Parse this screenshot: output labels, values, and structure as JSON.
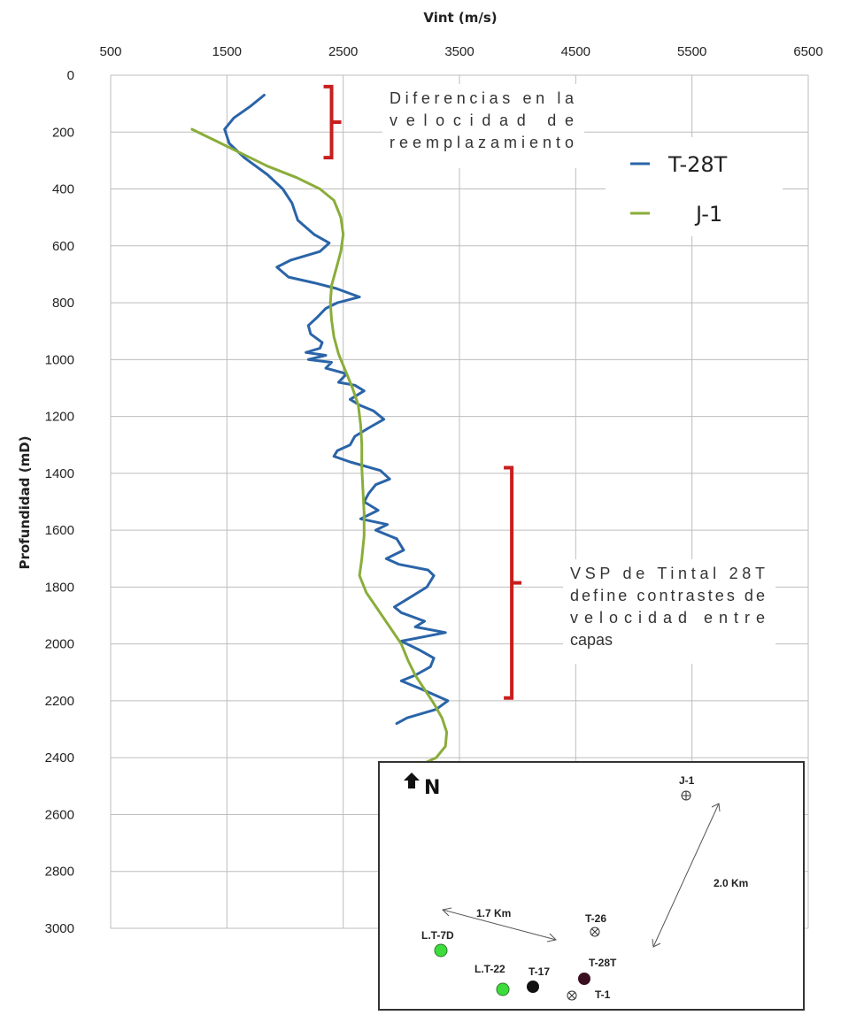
{
  "chart_data": {
    "type": "line",
    "xlabel": "Vint (m/s)",
    "ylabel": "Profundidad (mD)",
    "xlim": [
      500,
      6500
    ],
    "ylim": [
      0,
      3000
    ],
    "x_ticks": [
      "500",
      "1500",
      "2500",
      "3500",
      "4500",
      "5500",
      "6500"
    ],
    "y_ticks": [
      "0",
      "200",
      "400",
      "600",
      "800",
      "1000",
      "1200",
      "1400",
      "1600",
      "1800",
      "2000",
      "2200",
      "2400",
      "2600",
      "2800",
      "3000"
    ],
    "grid": true,
    "legend_position": "top-right",
    "series": [
      {
        "name": "T-28T",
        "color": "#2a64a8",
        "points": [
          [
            1820,
            70
          ],
          [
            1700,
            110
          ],
          [
            1560,
            150
          ],
          [
            1480,
            190
          ],
          [
            1520,
            240
          ],
          [
            1650,
            290
          ],
          [
            1850,
            350
          ],
          [
            1980,
            400
          ],
          [
            2060,
            450
          ],
          [
            2110,
            510
          ],
          [
            2250,
            560
          ],
          [
            2380,
            590
          ],
          [
            2300,
            620
          ],
          [
            2050,
            650
          ],
          [
            1930,
            675
          ],
          [
            2030,
            710
          ],
          [
            2250,
            730
          ],
          [
            2440,
            750
          ],
          [
            2640,
            780
          ],
          [
            2450,
            800
          ],
          [
            2350,
            820
          ],
          [
            2280,
            850
          ],
          [
            2200,
            880
          ],
          [
            2220,
            910
          ],
          [
            2320,
            940
          ],
          [
            2300,
            960
          ],
          [
            2180,
            975
          ],
          [
            2350,
            985
          ],
          [
            2200,
            1000
          ],
          [
            2400,
            1010
          ],
          [
            2350,
            1030
          ],
          [
            2530,
            1050
          ],
          [
            2460,
            1080
          ],
          [
            2600,
            1090
          ],
          [
            2680,
            1110
          ],
          [
            2560,
            1140
          ],
          [
            2640,
            1160
          ],
          [
            2760,
            1180
          ],
          [
            2850,
            1210
          ],
          [
            2720,
            1240
          ],
          [
            2600,
            1270
          ],
          [
            2560,
            1300
          ],
          [
            2450,
            1320
          ],
          [
            2420,
            1340
          ],
          [
            2560,
            1360
          ],
          [
            2820,
            1390
          ],
          [
            2900,
            1420
          ],
          [
            2780,
            1440
          ],
          [
            2720,
            1470
          ],
          [
            2680,
            1500
          ],
          [
            2800,
            1530
          ],
          [
            2650,
            1560
          ],
          [
            2880,
            1580
          ],
          [
            2780,
            1600
          ],
          [
            2960,
            1630
          ],
          [
            3020,
            1670
          ],
          [
            2870,
            1700
          ],
          [
            2980,
            1720
          ],
          [
            3230,
            1740
          ],
          [
            3280,
            1760
          ],
          [
            3220,
            1800
          ],
          [
            3060,
            1840
          ],
          [
            2940,
            1870
          ],
          [
            3000,
            1890
          ],
          [
            3200,
            1920
          ],
          [
            3120,
            1940
          ],
          [
            3380,
            1960
          ],
          [
            3000,
            1990
          ],
          [
            3150,
            2020
          ],
          [
            3280,
            2050
          ],
          [
            3250,
            2080
          ],
          [
            3120,
            2110
          ],
          [
            3000,
            2130
          ],
          [
            3180,
            2160
          ],
          [
            3400,
            2200
          ],
          [
            3300,
            2230
          ],
          [
            3050,
            2260
          ],
          [
            2960,
            2280
          ]
        ]
      },
      {
        "name": "J-1",
        "color": "#8aad3a",
        "points": [
          [
            1200,
            190
          ],
          [
            1400,
            230
          ],
          [
            1600,
            270
          ],
          [
            1850,
            320
          ],
          [
            2100,
            360
          ],
          [
            2300,
            400
          ],
          [
            2420,
            440
          ],
          [
            2480,
            500
          ],
          [
            2500,
            560
          ],
          [
            2480,
            620
          ],
          [
            2440,
            680
          ],
          [
            2400,
            740
          ],
          [
            2390,
            800
          ],
          [
            2400,
            860
          ],
          [
            2420,
            920
          ],
          [
            2460,
            980
          ],
          [
            2520,
            1040
          ],
          [
            2580,
            1100
          ],
          [
            2630,
            1160
          ],
          [
            2650,
            1230
          ],
          [
            2660,
            1300
          ],
          [
            2660,
            1380
          ],
          [
            2670,
            1460
          ],
          [
            2680,
            1540
          ],
          [
            2680,
            1620
          ],
          [
            2660,
            1700
          ],
          [
            2640,
            1760
          ],
          [
            2700,
            1820
          ],
          [
            2800,
            1880
          ],
          [
            2900,
            1940
          ],
          [
            3000,
            2000
          ],
          [
            3060,
            2060
          ],
          [
            3120,
            2110
          ],
          [
            3200,
            2160
          ],
          [
            3280,
            2210
          ],
          [
            3350,
            2260
          ],
          [
            3390,
            2310
          ],
          [
            3380,
            2360
          ],
          [
            3300,
            2400
          ],
          [
            3140,
            2430
          ]
        ]
      }
    ],
    "annotations": [
      {
        "name": "replacement-velocity",
        "depth_range": [
          40,
          290
        ],
        "x_value": 2400,
        "lines": [
          "Diferencias en la",
          "velocidad de",
          "reemplazamiento"
        ]
      },
      {
        "name": "vsp-note",
        "depth_range": [
          1380,
          2190
        ],
        "x_value": 3950,
        "lines": [
          "VSP de Tintal 28T",
          "define contrastes de",
          "velocidad entre",
          "capas"
        ]
      }
    ]
  },
  "inset_map": {
    "north_label": "N",
    "scale_labels": [
      "1.7 Km",
      "2.0 Km"
    ],
    "wells": [
      {
        "label": "J-1",
        "symbol": "crossed-circle",
        "color": "#ffffff"
      },
      {
        "label": "T-26",
        "symbol": "crossed-circle",
        "color": "#ffffff"
      },
      {
        "label": "L.T-7D",
        "symbol": "dot",
        "color": "#3ddc3d"
      },
      {
        "label": "L.T-22",
        "symbol": "dot",
        "color": "#3ddc3d"
      },
      {
        "label": "T-17",
        "symbol": "dot",
        "color": "#111111"
      },
      {
        "label": "T-28T",
        "symbol": "dot",
        "color": "#3a1020"
      },
      {
        "label": "T-1",
        "symbol": "crossed-circle",
        "color": "#ffffff"
      }
    ]
  }
}
